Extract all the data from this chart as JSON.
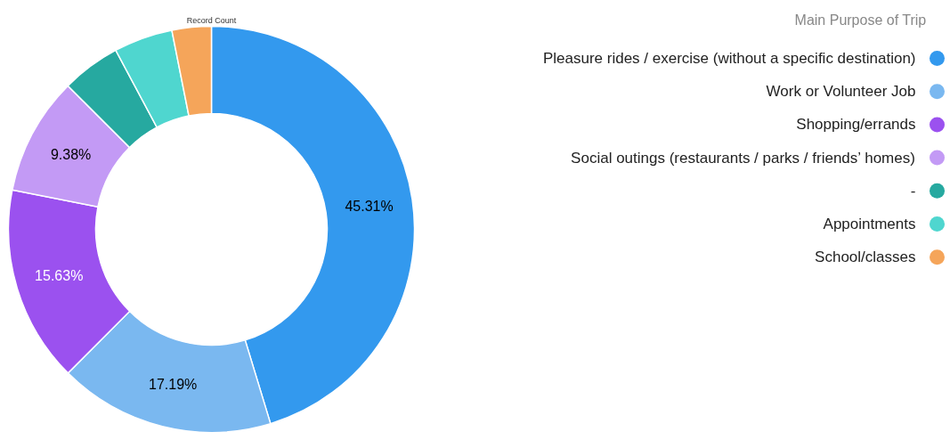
{
  "chart_data": {
    "type": "donut",
    "title": "Record Count",
    "legend_title": "Main Purpose of Trip",
    "legend": "top right",
    "categories": [
      "Pleasure rides / exercise (without a specific destination)",
      "Work or Volunteer Job",
      "Shopping/errands",
      "Social outings (restaurants / parks / friends’ homes)",
      "-",
      "Appointments",
      "School/classes"
    ],
    "values": [
      45.31,
      17.19,
      15.63,
      9.38,
      4.69,
      4.69,
      3.13
    ],
    "value_labels": [
      "45.31%",
      "17.19%",
      "15.63%",
      "9.38%",
      null,
      null,
      null
    ],
    "colors": [
      "#3399ee",
      "#7ab8f0",
      "#9b51ef",
      "#c39af5",
      "#26a9a0",
      "#4fd6cf",
      "#f5a55a"
    ]
  }
}
